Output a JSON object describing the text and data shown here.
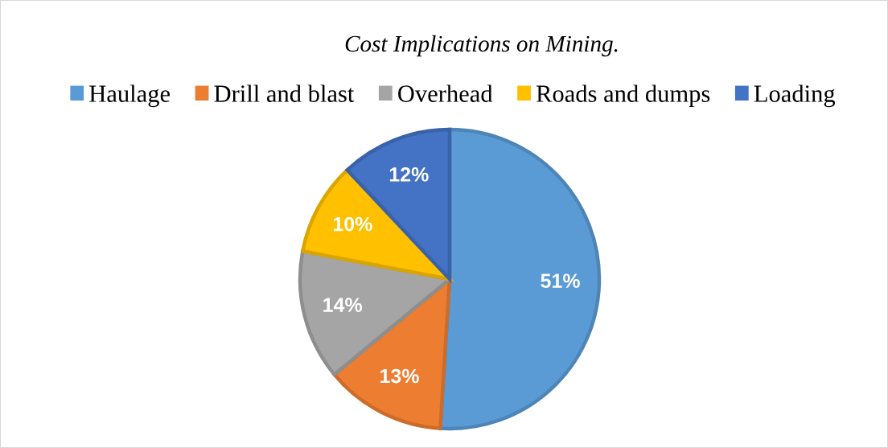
{
  "chart_data": {
    "type": "pie",
    "title": "Cost Implications on Mining.",
    "categories": [
      "Haulage",
      "Drill and blast",
      "Overhead",
      "Roads and dumps",
      "Loading"
    ],
    "values": [
      51,
      13,
      14,
      10,
      12
    ],
    "colors": [
      "#5b9bd5",
      "#ed7d31",
      "#a5a5a5",
      "#ffc000",
      "#4472c4"
    ],
    "value_labels": [
      "51%",
      "13%",
      "14%",
      "10%",
      "12%"
    ],
    "legend": "top"
  }
}
